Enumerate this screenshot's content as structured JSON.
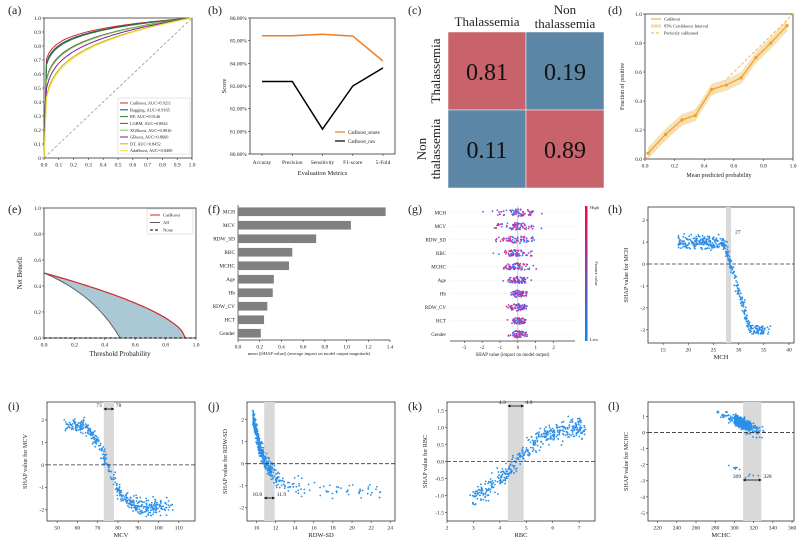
{
  "figure": {
    "panel_letters": [
      "(a)",
      "(b)",
      "(c)",
      "(d)",
      "(e)",
      "(f)",
      "(g)",
      "(h)",
      "(i)",
      "(j)",
      "(k)",
      "(l)"
    ]
  },
  "chart_data": [
    {
      "panel": "(a)",
      "type": "line",
      "title": "",
      "xlabel": "",
      "ylabel": "",
      "xlim": [
        0,
        1
      ],
      "ylim": [
        0,
        1
      ],
      "xticks": [
        "0.0",
        "0.1",
        "0.2",
        "0.3",
        "0.4",
        "0.5",
        "0.6",
        "0.7",
        "0.8",
        "0.9",
        "1.0"
      ],
      "yticks": [
        "0",
        "0.1",
        "0.2",
        "0.3",
        "0.4",
        "0.5",
        "0.6",
        "0.7",
        "0.8",
        "0.9",
        "1.0"
      ],
      "series": [
        {
          "name": "CatBoost, AUC=0.9211",
          "color": "#d62728",
          "k": 0.085
        },
        {
          "name": "Bagging, AUC=0.9165",
          "color": "#1f3f7a",
          "k": 0.095
        },
        {
          "name": "RF, AUC=0.9146",
          "color": "#2e7d32",
          "k": 0.1
        },
        {
          "name": "LGBM, AUC=0.8842",
          "color": "#555555",
          "k": 0.14
        },
        {
          "name": "XGBoost, AUC=0.8816",
          "color": "#8bc34a",
          "k": 0.145
        },
        {
          "name": "GBoost, AUC=0.8660",
          "color": "#7b1fa2",
          "k": 0.17
        },
        {
          "name": "DT, AUC=0.8452",
          "color": "#c9b400",
          "k": 0.2
        },
        {
          "name": "AdaBoost, AUC=0.8400",
          "color": "#f4e04d",
          "k": 0.21
        }
      ]
    },
    {
      "panel": "(b)",
      "type": "line",
      "xlabel": "Evaluation Metrics",
      "ylabel": "Score",
      "categories": [
        "Accuray",
        "Precision",
        "Sensitivity",
        "F1-score",
        "5-Fold"
      ],
      "ylim": [
        80.0,
        86.0
      ],
      "yticks": [
        "80.00%",
        "81.00%",
        "82.00%",
        "83.00%",
        "84.00%",
        "85.00%",
        "86.00%"
      ],
      "series": [
        {
          "name": "CatBoost_smote",
          "color": "#ef7d22",
          "values": [
            85.22,
            85.22,
            85.28,
            85.2,
            84.1
          ]
        },
        {
          "name": "CatBoost_raw",
          "color": "#000000",
          "values": [
            83.2,
            83.2,
            81.1,
            83.0,
            83.8
          ]
        }
      ]
    },
    {
      "panel": "(c)",
      "type": "heatmap",
      "col_labels": [
        "Thalassemia",
        "Non\nthalassemia"
      ],
      "row_labels": [
        "Thalassemia",
        "Non\nthalassemia"
      ],
      "values": [
        [
          "0.81",
          "0.19"
        ],
        [
          "0.11",
          "0.89"
        ]
      ]
    },
    {
      "panel": "(d)",
      "type": "line",
      "xlabel": "Mean predicted probability",
      "ylabel": "Fraction of positive",
      "xlim": [
        0,
        1
      ],
      "ylim": [
        0,
        1
      ],
      "xticks": [
        "0.0",
        "0.2",
        "0.4",
        "0.6",
        "0.8",
        "1.0"
      ],
      "yticks": [
        "0.0",
        "0.2",
        "0.4",
        "0.6",
        "0.8",
        "1.0"
      ],
      "legend": [
        "CatBoost",
        "95% Confidence Interval",
        "Perfectly calibrated"
      ],
      "x": [
        0.02,
        0.14,
        0.25,
        0.34,
        0.45,
        0.55,
        0.65,
        0.75,
        0.85,
        0.96
      ],
      "y": [
        0.04,
        0.17,
        0.27,
        0.3,
        0.48,
        0.51,
        0.56,
        0.7,
        0.8,
        0.92
      ]
    },
    {
      "panel": "(e)",
      "type": "area",
      "xlabel": "Threshold Probability",
      "ylabel": "Net Benefit",
      "xlim": [
        0,
        1
      ],
      "ylim": [
        0,
        1
      ],
      "xticks": [
        "0.0",
        "0.2",
        "0.4",
        "0.6",
        "0.8",
        "1.0"
      ],
      "yticks": [
        "0.0",
        "0.2",
        "0.4",
        "0.6",
        "0.8",
        "1.0"
      ],
      "legend": [
        "CatBoost",
        "All",
        "None"
      ]
    },
    {
      "panel": "(f)",
      "type": "bar",
      "xlabel": "mean (|SHAP value|) (average impact on model output magnitude)",
      "categories": [
        "MCH",
        "MCV",
        "RDW_SD",
        "RBC",
        "MCHC",
        "Age",
        "Hb",
        "RDW_CV",
        "HCT",
        "Gender"
      ],
      "values": [
        1.36,
        1.04,
        0.72,
        0.5,
        0.47,
        0.33,
        0.32,
        0.27,
        0.24,
        0.21
      ],
      "xlim": [
        0,
        1.4
      ],
      "xticks": [
        "0.0",
        "0.2",
        "0.4",
        "0.6",
        "0.8",
        "1.0",
        "1.2",
        "1.4"
      ]
    },
    {
      "panel": "(g)",
      "type": "scatter",
      "xlabel": "SHAP value (impact on model output)",
      "categories": [
        "MCH",
        "MCV",
        "RDW_SD",
        "RBC",
        "MCHC",
        "Age",
        "Hb",
        "RDW_CV",
        "HCT",
        "Gender"
      ],
      "spread": [
        3.2,
        2.8,
        2.6,
        2.2,
        2.0,
        1.4,
        1.3,
        1.3,
        1.2,
        1.0
      ],
      "xlim": [
        -3.8,
        3.2
      ],
      "xticks": [
        "-3",
        "-2",
        "-1",
        "0",
        "1",
        "2"
      ],
      "colorbar": {
        "label": "Feature value",
        "high": "High",
        "low": "Low"
      }
    },
    {
      "panel": "(h)",
      "type": "scatter",
      "xlabel": "MCH",
      "ylabel": "SHAP value for MCH",
      "xlim": [
        12,
        41
      ],
      "ylim": [
        -3.6,
        2.6
      ],
      "xticks": [
        "15",
        "20",
        "25",
        "30",
        "35",
        "40"
      ],
      "yticks": [
        "-3",
        "-2",
        "-1",
        "0",
        "1",
        "2"
      ],
      "threshold_label": "27",
      "band": [
        27.5,
        28.5
      ]
    },
    {
      "panel": "(i)",
      "type": "scatter",
      "xlabel": "MCV",
      "ylabel": "SHAP value for MCV",
      "xlim": [
        45,
        118
      ],
      "ylim": [
        -2.5,
        2.8
      ],
      "xticks": [
        "50",
        "60",
        "70",
        "80",
        "90",
        "100",
        "110"
      ],
      "yticks": [
        "-2",
        "-1",
        "0",
        "1",
        "2"
      ],
      "range_labels": [
        "73",
        "78"
      ],
      "band": [
        73,
        78
      ]
    },
    {
      "panel": "(j)",
      "type": "scatter",
      "xlabel": "RDW-SD",
      "ylabel": "SHAP value for RDW-SD",
      "xlim": [
        9,
        24.5
      ],
      "ylim": [
        -2.6,
        2.8
      ],
      "xticks": [
        "10",
        "12",
        "14",
        "16",
        "18",
        "20",
        "22",
        "24"
      ],
      "yticks": [
        "-2",
        "-1",
        "0",
        "1",
        "2"
      ],
      "range_labels": [
        "10.8",
        "11.9"
      ],
      "band": [
        10.8,
        11.9
      ]
    },
    {
      "panel": "(k)",
      "type": "scatter",
      "xlabel": "RBC",
      "ylabel": "SHAP value for RBC",
      "xlim": [
        2,
        7.6
      ],
      "ylim": [
        -1.75,
        1.75
      ],
      "xticks": [
        "2",
        "3",
        "4",
        "5",
        "6",
        "7"
      ],
      "yticks": [
        "-1.5",
        "-1.0",
        "-0.5",
        "0.0",
        "0.5",
        "1.0",
        "1.5"
      ],
      "range_labels": [
        "4.3",
        "4.9"
      ],
      "band": [
        4.3,
        4.9
      ]
    },
    {
      "panel": "(l)",
      "type": "scatter",
      "xlabel": "MCHC",
      "ylabel": "SHAP value for MCHC",
      "xlim": [
        210,
        362
      ],
      "ylim": [
        -5.5,
        1.9
      ],
      "xticks": [
        "220",
        "240",
        "260",
        "280",
        "300",
        "320",
        "340",
        "360"
      ],
      "yticks": [
        "-5",
        "-4",
        "-3",
        "-2",
        "-1",
        "0",
        "1"
      ],
      "range_labels": [
        "309",
        "328"
      ],
      "band": [
        309,
        328
      ]
    }
  ]
}
